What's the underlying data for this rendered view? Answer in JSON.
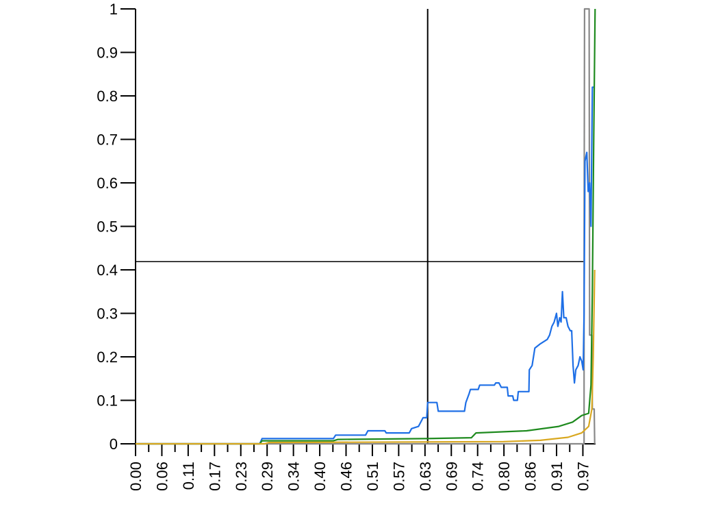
{
  "chart_data": {
    "type": "line",
    "title": "",
    "xlabel": "",
    "ylabel": "",
    "xlim": [
      0,
      1
    ],
    "ylim": [
      0,
      1
    ],
    "grid": false,
    "legend": "none",
    "y_ticks": [
      "0",
      "0.1",
      "0.2",
      "0.3",
      "0.4",
      "0.5",
      "0.6",
      "0.7",
      "0.8",
      "0.9",
      "1"
    ],
    "x_ticks": [
      "0.00",
      "0.06",
      "0.11",
      "0.17",
      "0.23",
      "0.29",
      "0.34",
      "0.40",
      "0.46",
      "0.51",
      "0.57",
      "0.63",
      "0.69",
      "0.74",
      "0.80",
      "0.86",
      "0.91",
      "0.97"
    ],
    "x_tick_step": 0.0286,
    "reference_lines": {
      "vertical_x": 0.635,
      "horizontal_y": 0.419,
      "color": "#000000"
    },
    "series": [
      {
        "color": "#888888",
        "points": [
          [
            0,
            0
          ],
          [
            0.975,
            0
          ],
          [
            0.975,
            0.419
          ],
          [
            0.976,
            1
          ],
          [
            0.986,
            1
          ],
          [
            0.987,
            0.25
          ],
          [
            0.992,
            0.25
          ],
          [
            0.993,
            0.08
          ],
          [
            0.997,
            0.08
          ],
          [
            0.998,
            0
          ]
        ]
      },
      {
        "color": "#1e6fe6",
        "points": [
          [
            0,
            0
          ],
          [
            0.27,
            0
          ],
          [
            0.275,
            0.012
          ],
          [
            0.43,
            0.012
          ],
          [
            0.435,
            0.02
          ],
          [
            0.5,
            0.02
          ],
          [
            0.505,
            0.03
          ],
          [
            0.542,
            0.03
          ],
          [
            0.545,
            0.025
          ],
          [
            0.595,
            0.025
          ],
          [
            0.6,
            0.035
          ],
          [
            0.615,
            0.04
          ],
          [
            0.625,
            0.06
          ],
          [
            0.633,
            0.06
          ],
          [
            0.635,
            0.095
          ],
          [
            0.655,
            0.095
          ],
          [
            0.658,
            0.075
          ],
          [
            0.715,
            0.075
          ],
          [
            0.718,
            0.095
          ],
          [
            0.725,
            0.115
          ],
          [
            0.728,
            0.125
          ],
          [
            0.745,
            0.125
          ],
          [
            0.748,
            0.135
          ],
          [
            0.78,
            0.135
          ],
          [
            0.783,
            0.14
          ],
          [
            0.79,
            0.14
          ],
          [
            0.795,
            0.13
          ],
          [
            0.808,
            0.13
          ],
          [
            0.81,
            0.11
          ],
          [
            0.82,
            0.11
          ],
          [
            0.822,
            0.1
          ],
          [
            0.83,
            0.1
          ],
          [
            0.832,
            0.12
          ],
          [
            0.855,
            0.12
          ],
          [
            0.856,
            0.17
          ],
          [
            0.862,
            0.18
          ],
          [
            0.868,
            0.22
          ],
          [
            0.88,
            0.23
          ],
          [
            0.895,
            0.24
          ],
          [
            0.9,
            0.25
          ],
          [
            0.905,
            0.27
          ],
          [
            0.91,
            0.28
          ],
          [
            0.915,
            0.3
          ],
          [
            0.918,
            0.27
          ],
          [
            0.922,
            0.29
          ],
          [
            0.925,
            0.28
          ],
          [
            0.928,
            0.35
          ],
          [
            0.931,
            0.29
          ],
          [
            0.936,
            0.29
          ],
          [
            0.94,
            0.27
          ],
          [
            0.945,
            0.26
          ],
          [
            0.948,
            0.26
          ],
          [
            0.951,
            0.18
          ],
          [
            0.954,
            0.14
          ],
          [
            0.957,
            0.17
          ],
          [
            0.962,
            0.18
          ],
          [
            0.966,
            0.2
          ],
          [
            0.97,
            0.19
          ],
          [
            0.973,
            0.17
          ],
          [
            0.975,
            0.3
          ],
          [
            0.977,
            0.65
          ],
          [
            0.981,
            0.67
          ],
          [
            0.984,
            0.58
          ],
          [
            0.987,
            0.6
          ],
          [
            0.99,
            0.5
          ],
          [
            0.993,
            0.82
          ],
          [
            0.998,
            0.82
          ]
        ]
      },
      {
        "color": "#1e8a1e",
        "points": [
          [
            0,
            0
          ],
          [
            0.27,
            0
          ],
          [
            0.275,
            0.007
          ],
          [
            0.43,
            0.007
          ],
          [
            0.44,
            0.01
          ],
          [
            0.63,
            0.012
          ],
          [
            0.73,
            0.014
          ],
          [
            0.74,
            0.025
          ],
          [
            0.85,
            0.03
          ],
          [
            0.92,
            0.04
          ],
          [
            0.95,
            0.05
          ],
          [
            0.97,
            0.065
          ],
          [
            0.985,
            0.07
          ],
          [
            0.99,
            0.135
          ],
          [
            0.993,
            0.35
          ],
          [
            0.996,
            0.7
          ],
          [
            0.999,
            1.0
          ]
        ]
      },
      {
        "color": "#d9a820",
        "points": [
          [
            0,
            0
          ],
          [
            0.28,
            0
          ],
          [
            0.29,
            0.003
          ],
          [
            0.8,
            0.005
          ],
          [
            0.88,
            0.008
          ],
          [
            0.94,
            0.015
          ],
          [
            0.97,
            0.025
          ],
          [
            0.985,
            0.04
          ],
          [
            0.992,
            0.08
          ],
          [
            0.995,
            0.2
          ],
          [
            0.998,
            0.4
          ]
        ]
      }
    ]
  }
}
